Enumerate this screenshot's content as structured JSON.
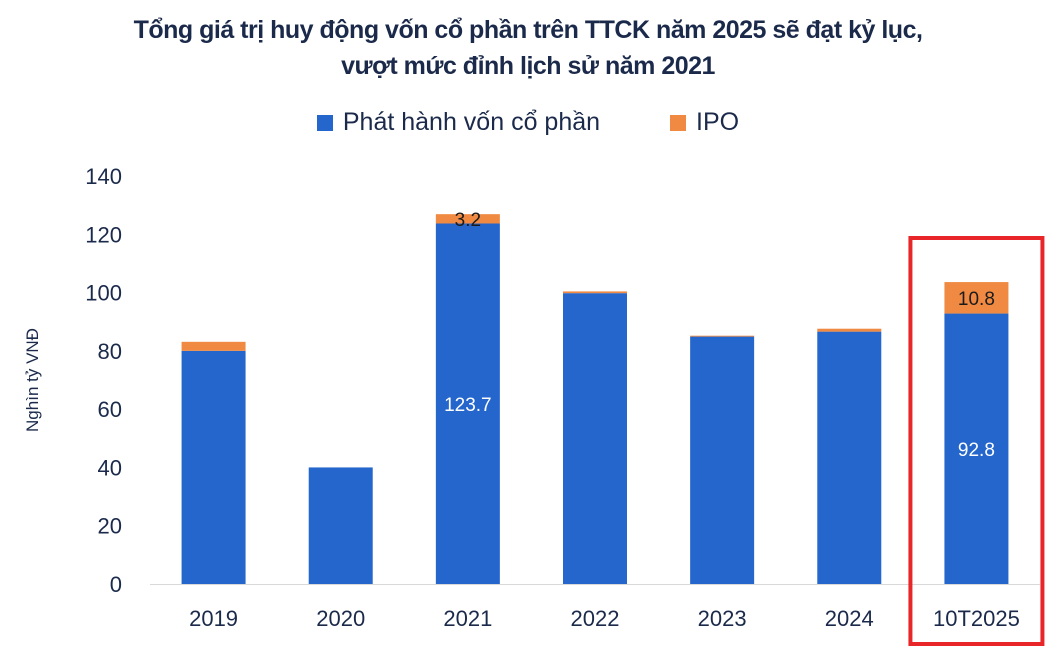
{
  "chart_data": {
    "type": "bar",
    "stacked": true,
    "title_lines": [
      "Tổng giá trị huy động vốn cổ phần trên TTCK năm 2025 sẽ đạt kỷ lục,",
      "vượt mức đỉnh lịch sử năm 2021"
    ],
    "ylabel": "Nghìn tỷ VNĐ",
    "xlabel": "",
    "ylim": [
      0,
      140
    ],
    "yticks": [
      0,
      20,
      40,
      60,
      80,
      100,
      120,
      140
    ],
    "grid": false,
    "legend_placement": "top",
    "categories": [
      "2019",
      "2020",
      "2021",
      "2022",
      "2023",
      "2024",
      "10T2025"
    ],
    "series": [
      {
        "name": "Phát hành vốn cổ phần",
        "color": "#2566cc",
        "values": [
          80.0,
          40.0,
          123.7,
          99.8,
          84.9,
          86.6,
          92.8
        ],
        "labels": [
          null,
          null,
          "123.7",
          null,
          null,
          null,
          "92.8"
        ]
      },
      {
        "name": "IPO",
        "color": "#f08a42",
        "values": [
          3.1,
          0,
          3.2,
          0.6,
          0.3,
          1.0,
          10.8
        ],
        "labels": [
          null,
          null,
          "3.2",
          null,
          null,
          null,
          "10.8"
        ]
      }
    ],
    "highlight": {
      "category": "10T2025",
      "color": "#e8262a"
    }
  }
}
